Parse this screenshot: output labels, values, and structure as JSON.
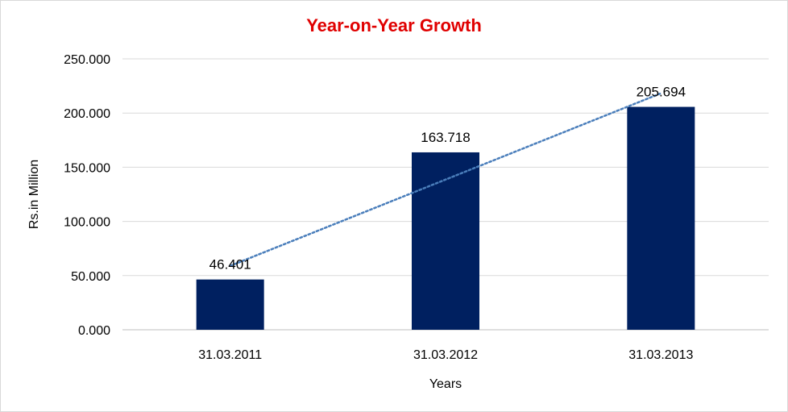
{
  "chart_data": {
    "type": "bar",
    "title": "Year-on-Year Growth",
    "xlabel": "Years",
    "ylabel": "Rs.in Million",
    "categories": [
      "31.03.2011",
      "31.03.2012",
      "31.03.2013"
    ],
    "values": [
      46.401,
      163.718,
      205.694
    ],
    "data_labels": [
      "46.401",
      "163.718",
      "205.694"
    ],
    "ylim": [
      0,
      250
    ],
    "yticks": [
      0,
      50,
      100,
      150,
      200,
      250
    ],
    "ytick_labels": [
      "0.000",
      "50.000",
      "100.000",
      "150.000",
      "200.000",
      "250.000"
    ],
    "grid": true,
    "legend": "none",
    "trendline": {
      "type": "linear",
      "style": "dotted",
      "color": "#4a7ebb"
    },
    "colors": {
      "bar": "#002060",
      "title": "#e00000",
      "grid": "#d9d9d9",
      "axis": "#bfbfbf"
    }
  }
}
